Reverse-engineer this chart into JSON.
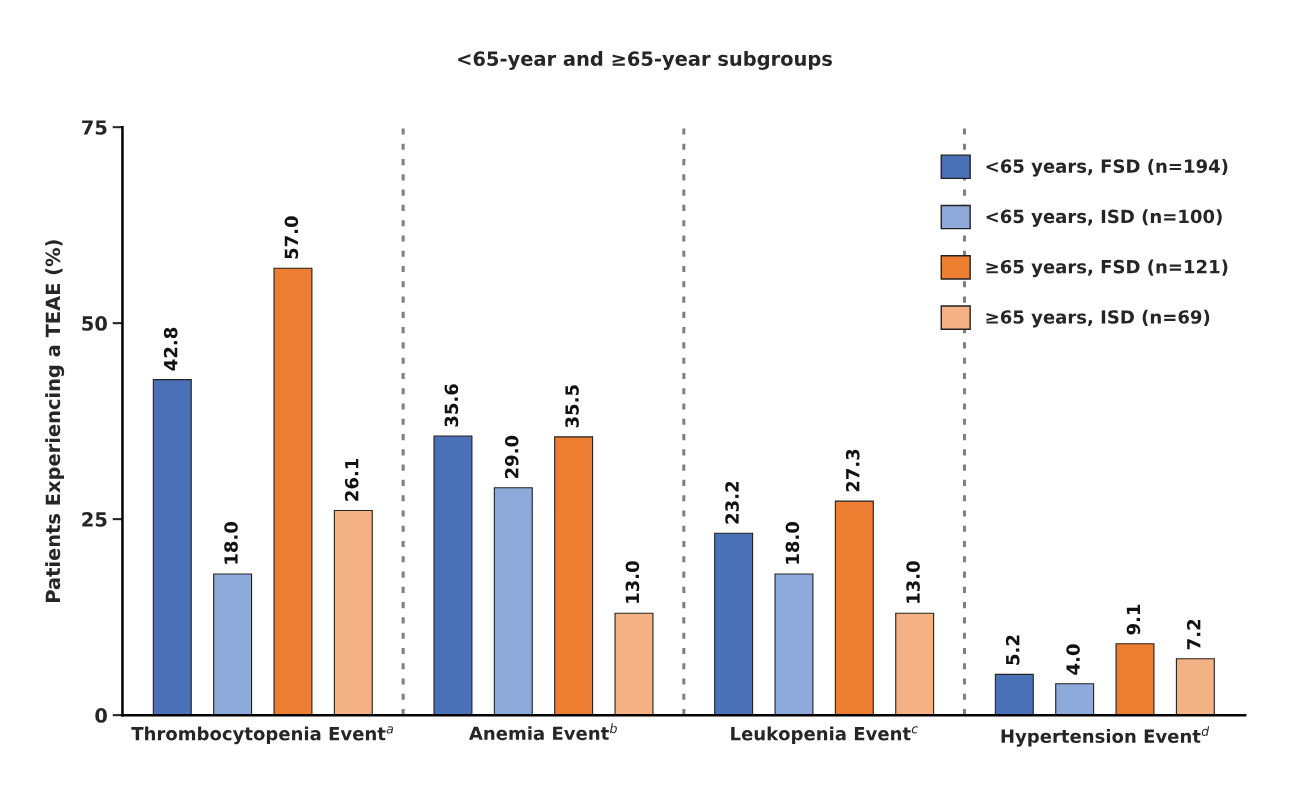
{
  "chart_data": {
    "type": "bar",
    "title": "<65-year and ≥65-year subgroups",
    "ylabel": "Patients Experiencing a TEAE (%)",
    "categories": [
      "Thrombocytopenia Event$^{a}$",
      "Anemia Event$^{b}$",
      "Leukopenia Event$^{c}$",
      "Hypertension Event$^{d}$"
    ],
    "series": [
      {
        "name": "<65 years, FSD (n=194)",
        "color": "#4a70b7",
        "values": [
          42.8,
          35.6,
          23.2,
          5.2
        ],
        "value_labels": [
          "42.8",
          "35.6",
          "23.2",
          "5.2"
        ]
      },
      {
        "name": "<65 years, ISD (n=100)",
        "color": "#8eaadb",
        "values": [
          18.0,
          29.0,
          18.0,
          4.0
        ],
        "value_labels": [
          "18.0",
          "29.0",
          "18.0",
          "4.0"
        ]
      },
      {
        "name": "≥65 years, FSD (n=121)",
        "color": "#ed7d31",
        "values": [
          57.0,
          35.5,
          27.3,
          9.1
        ],
        "value_labels": [
          "57.0",
          "35.5",
          "27.3",
          "9.1"
        ]
      },
      {
        "name": "≥65 years, ISD (n=69)",
        "color": "#f4b183",
        "values": [
          26.1,
          13.0,
          13.0,
          7.2
        ],
        "value_labels": [
          "26.1",
          "13.0",
          "13.0",
          "7.2"
        ]
      }
    ],
    "ylim": [
      0,
      75
    ],
    "yticks": [
      0,
      25,
      50,
      75
    ],
    "grid": false,
    "legend": "top right"
  }
}
